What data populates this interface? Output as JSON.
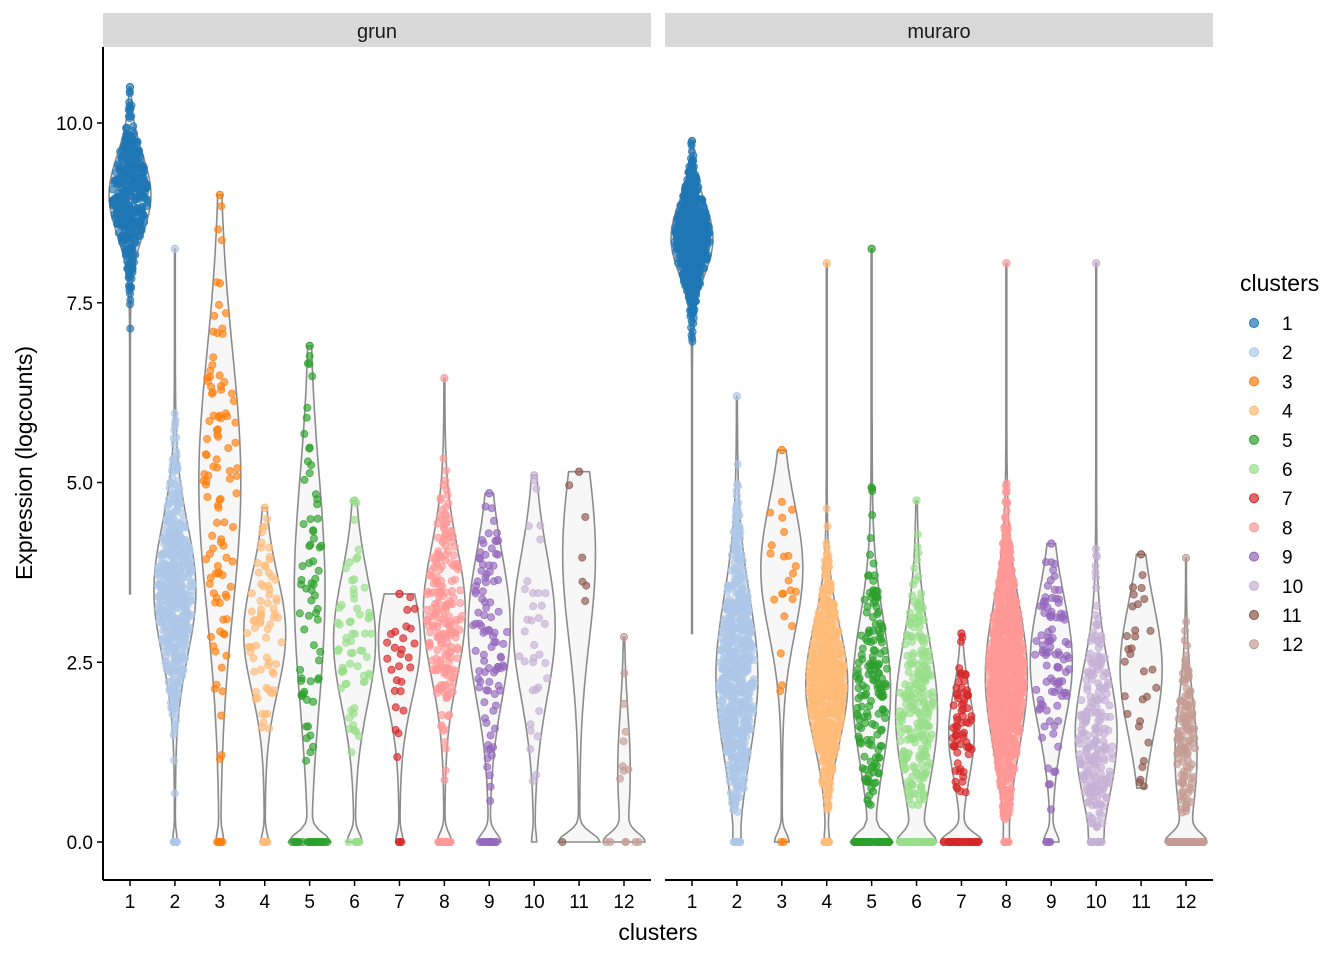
{
  "chart_data": {
    "type": "violin",
    "xlabel": "clusters",
    "ylabel": "Expression (logcounts)",
    "ylim": [
      -0.5,
      11
    ],
    "yticks": [
      "0.0",
      "2.5",
      "5.0",
      "7.5",
      "10.0"
    ],
    "ytick_values": [
      0,
      2.5,
      5,
      7.5,
      10
    ],
    "categories": [
      "1",
      "2",
      "3",
      "4",
      "5",
      "6",
      "7",
      "8",
      "9",
      "10",
      "11",
      "12"
    ],
    "legend": {
      "title": "clusters",
      "placement": "right",
      "entries": [
        "1",
        "2",
        "3",
        "4",
        "5",
        "6",
        "7",
        "8",
        "9",
        "10",
        "11",
        "12"
      ]
    },
    "colors": [
      "#1f77b4",
      "#aec7e8",
      "#ff7f0e",
      "#ffbb78",
      "#2ca02c",
      "#98df8a",
      "#d62728",
      "#ff9896",
      "#9467bd",
      "#c5b0d5",
      "#8c564b",
      "#c49c94"
    ],
    "facets": [
      {
        "name": "grun",
        "violins": [
          {
            "cluster": "1",
            "min": 3.45,
            "max": 10.5,
            "center": 9.0,
            "spread": 0.55,
            "n": 420,
            "zero_fraction": 0
          },
          {
            "cluster": "2",
            "min": 0.6,
            "max": 8.25,
            "center": 3.5,
            "spread": 0.9,
            "n": 520,
            "zero_fraction": 0.03
          },
          {
            "cluster": "3",
            "min": 0.7,
            "max": 9.0,
            "center": 5.0,
            "spread": 1.8,
            "n": 110,
            "zero_fraction": 0.05
          },
          {
            "cluster": "4",
            "min": 0.85,
            "max": 4.65,
            "center": 2.9,
            "spread": 0.8,
            "n": 80,
            "zero_fraction": 0.05
          },
          {
            "cluster": "5",
            "min": 0.95,
            "max": 6.9,
            "center": 3.5,
            "spread": 1.6,
            "n": 90,
            "zero_fraction": 0.3
          },
          {
            "cluster": "6",
            "min": 1.2,
            "max": 4.75,
            "center": 2.8,
            "spread": 0.9,
            "n": 70,
            "zero_fraction": 0.1
          },
          {
            "cluster": "7",
            "min": 0.8,
            "max": 3.45,
            "center": 2.8,
            "spread": 0.8,
            "n": 30,
            "zero_fraction": 0.05
          },
          {
            "cluster": "8",
            "min": 0.75,
            "max": 6.45,
            "center": 3.2,
            "spread": 0.9,
            "n": 230,
            "zero_fraction": 0.1
          },
          {
            "cluster": "9",
            "min": 0.55,
            "max": 4.85,
            "center": 3.0,
            "spread": 1.0,
            "n": 110,
            "zero_fraction": 0.15
          },
          {
            "cluster": "10",
            "min": 0.55,
            "max": 5.1,
            "center": 3.0,
            "spread": 1.0,
            "n": 35,
            "zero_fraction": 0.03
          },
          {
            "cluster": "11",
            "min": 2.45,
            "max": 5.15,
            "center": 4.0,
            "spread": 1.2,
            "n": 7,
            "zero_fraction": 0.3
          },
          {
            "cluster": "12",
            "min": 0.8,
            "max": 2.85,
            "center": 1.0,
            "spread": 0.8,
            "n": 14,
            "zero_fraction": 0.5
          }
        ]
      },
      {
        "name": "muraro",
        "violins": [
          {
            "cluster": "1",
            "min": 2.9,
            "max": 9.75,
            "center": 8.4,
            "spread": 0.5,
            "n": 600,
            "zero_fraction": 0
          },
          {
            "cluster": "2",
            "min": 0.4,
            "max": 6.2,
            "center": 2.3,
            "spread": 1.1,
            "n": 600,
            "zero_fraction": 0.02
          },
          {
            "cluster": "3",
            "min": 1.3,
            "max": 5.45,
            "center": 3.8,
            "spread": 0.9,
            "n": 25,
            "zero_fraction": 0.1
          },
          {
            "cluster": "4",
            "min": 0.3,
            "max": 8.05,
            "center": 2.2,
            "spread": 0.8,
            "n": 600,
            "zero_fraction": 0.03
          },
          {
            "cluster": "5",
            "min": 0.5,
            "max": 8.25,
            "center": 2.1,
            "spread": 1.0,
            "n": 220,
            "zero_fraction": 0.25
          },
          {
            "cluster": "6",
            "min": 0.5,
            "max": 4.75,
            "center": 1.8,
            "spread": 1.0,
            "n": 300,
            "zero_fraction": 0.2
          },
          {
            "cluster": "7",
            "min": 0.5,
            "max": 2.9,
            "center": 1.5,
            "spread": 0.6,
            "n": 110,
            "zero_fraction": 0.35
          },
          {
            "cluster": "8",
            "min": 0.3,
            "max": 8.05,
            "center": 2.3,
            "spread": 1.0,
            "n": 900,
            "zero_fraction": 0.02
          },
          {
            "cluster": "9",
            "min": 0.45,
            "max": 4.15,
            "center": 2.5,
            "spread": 0.9,
            "n": 100,
            "zero_fraction": 0.1
          },
          {
            "cluster": "10",
            "min": 0.2,
            "max": 8.05,
            "center": 1.5,
            "spread": 0.9,
            "n": 220,
            "zero_fraction": 0.03
          },
          {
            "cluster": "11",
            "min": 0.75,
            "max": 4.0,
            "center": 2.4,
            "spread": 0.9,
            "n": 30,
            "zero_fraction": 0
          },
          {
            "cluster": "12",
            "min": 0.4,
            "max": 3.95,
            "center": 1.2,
            "spread": 0.8,
            "n": 200,
            "zero_fraction": 0.35
          }
        ]
      }
    ]
  }
}
